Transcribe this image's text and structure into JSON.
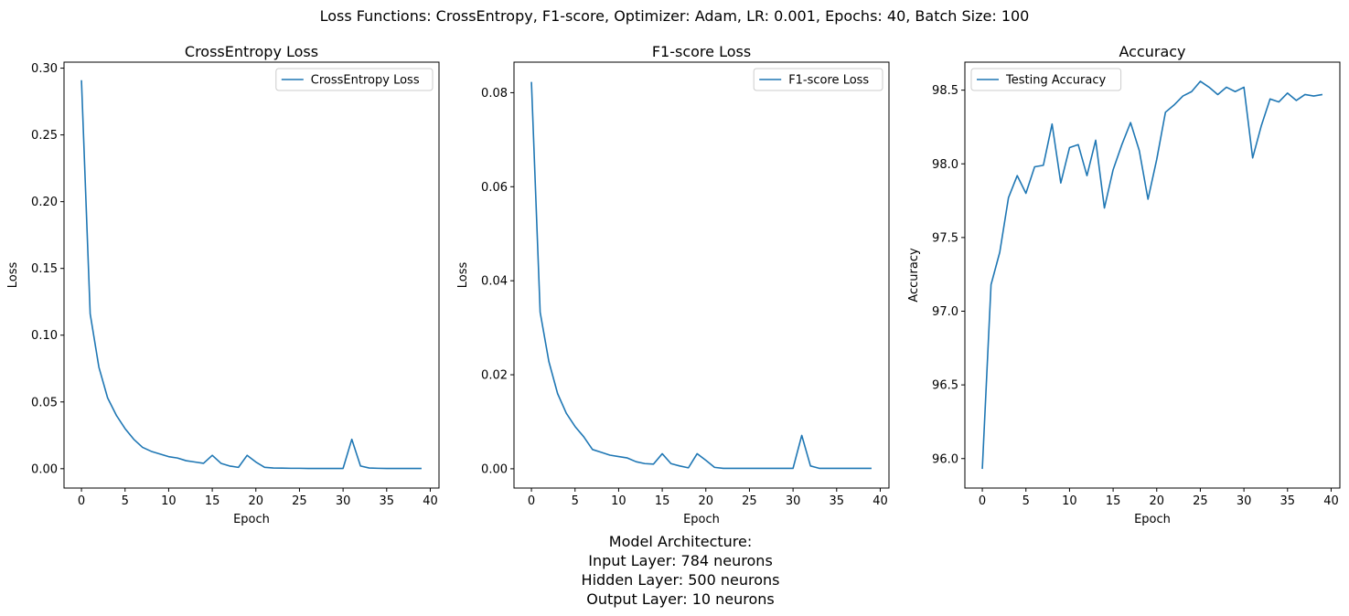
{
  "suptitle": "Loss Functions: CrossEntropy, F1-score, Optimizer: Adam, LR: 0.001, Epochs: 40, Batch Size: 100",
  "colors": {
    "line": "#1f77b4",
    "axis": "#000000",
    "legend_border": "#cccccc"
  },
  "architecture": {
    "title": "Model Architecture:",
    "input": "Input Layer: 784 neurons",
    "hidden": "Hidden Layer: 500 neurons",
    "output": "Output Layer: 10 neurons"
  },
  "chart_data": [
    {
      "type": "line",
      "title": "CrossEntropy Loss",
      "xlabel": "Epoch",
      "ylabel": "Loss",
      "xlim": [
        -2,
        41
      ],
      "ylim": [
        -0.0145,
        0.3045
      ],
      "xticks": [
        0,
        5,
        10,
        15,
        20,
        25,
        30,
        35,
        40
      ],
      "yticks": [
        0.0,
        0.05,
        0.1,
        0.15,
        0.2,
        0.25,
        0.3
      ],
      "ytick_labels": [
        "0.00",
        "0.05",
        "0.10",
        "0.15",
        "0.20",
        "0.25",
        "0.30"
      ],
      "grid": false,
      "legend_position": "upper right",
      "series": [
        {
          "name": "CrossEntropy Loss",
          "x": [
            0,
            1,
            2,
            3,
            4,
            5,
            6,
            7,
            8,
            9,
            10,
            11,
            12,
            13,
            14,
            15,
            16,
            17,
            18,
            19,
            20,
            21,
            22,
            23,
            24,
            25,
            26,
            27,
            28,
            29,
            30,
            31,
            32,
            33,
            34,
            35,
            36,
            37,
            38,
            39
          ],
          "y": [
            0.291,
            0.116,
            0.076,
            0.053,
            0.04,
            0.03,
            0.022,
            0.016,
            0.013,
            0.011,
            0.009,
            0.008,
            0.006,
            0.005,
            0.004,
            0.01,
            0.004,
            0.002,
            0.001,
            0.01,
            0.005,
            0.001,
            0.0005,
            0.0004,
            0.0003,
            0.0003,
            0.0002,
            0.0002,
            0.0002,
            0.0002,
            0.0002,
            0.022,
            0.002,
            0.0005,
            0.0003,
            0.0002,
            0.0002,
            0.0002,
            0.0002,
            0.0002
          ]
        }
      ]
    },
    {
      "type": "line",
      "title": "F1-score Loss",
      "xlabel": "Epoch",
      "ylabel": "Loss",
      "xlim": [
        -2,
        41
      ],
      "ylim": [
        -0.0041,
        0.0865
      ],
      "xticks": [
        0,
        5,
        10,
        15,
        20,
        25,
        30,
        35,
        40
      ],
      "yticks": [
        0.0,
        0.02,
        0.04,
        0.06,
        0.08
      ],
      "ytick_labels": [
        "0.00",
        "0.02",
        "0.04",
        "0.06",
        "0.08"
      ],
      "grid": false,
      "legend_position": "upper right",
      "series": [
        {
          "name": "F1-score Loss",
          "x": [
            0,
            1,
            2,
            3,
            4,
            5,
            6,
            7,
            8,
            9,
            10,
            11,
            12,
            13,
            14,
            15,
            16,
            17,
            18,
            19,
            20,
            21,
            22,
            23,
            24,
            25,
            26,
            27,
            28,
            29,
            30,
            31,
            32,
            33,
            34,
            35,
            36,
            37,
            38,
            39
          ],
          "y": [
            0.0823,
            0.0333,
            0.0228,
            0.016,
            0.0118,
            0.009,
            0.0068,
            0.0041,
            0.0035,
            0.0029,
            0.0026,
            0.0023,
            0.0015,
            0.0011,
            0.001,
            0.0032,
            0.0011,
            0.0006,
            0.0002,
            0.0032,
            0.0018,
            0.0003,
            0.0001,
            0.0001,
            0.0001,
            0.0001,
            0.0001,
            0.0001,
            0.0001,
            0.0001,
            0.0001,
            0.0071,
            0.0006,
            0.0001,
            0.0001,
            0.0001,
            0.0001,
            0.0001,
            0.0001,
            0.0001
          ]
        }
      ]
    },
    {
      "type": "line",
      "title": "Accuracy",
      "xlabel": "Epoch",
      "ylabel": "Accuracy",
      "xlim": [
        -2,
        41
      ],
      "ylim": [
        95.8,
        98.69
      ],
      "xticks": [
        0,
        5,
        10,
        15,
        20,
        25,
        30,
        35,
        40
      ],
      "yticks": [
        96.0,
        96.5,
        97.0,
        97.5,
        98.0,
        98.5
      ],
      "ytick_labels": [
        "96.0",
        "96.5",
        "97.0",
        "97.5",
        "98.0",
        "98.5"
      ],
      "grid": false,
      "legend_position": "upper left",
      "series": [
        {
          "name": "Testing Accuracy",
          "x": [
            0,
            1,
            2,
            3,
            4,
            5,
            6,
            7,
            8,
            9,
            10,
            11,
            12,
            13,
            14,
            15,
            16,
            17,
            18,
            19,
            20,
            21,
            22,
            23,
            24,
            25,
            26,
            27,
            28,
            29,
            30,
            31,
            32,
            33,
            34,
            35,
            36,
            37,
            38,
            39
          ],
          "y": [
            95.93,
            97.18,
            97.4,
            97.77,
            97.92,
            97.8,
            97.98,
            97.99,
            98.27,
            97.87,
            98.11,
            98.13,
            97.92,
            98.16,
            97.7,
            97.96,
            98.13,
            98.28,
            98.09,
            97.76,
            98.03,
            98.35,
            98.4,
            98.46,
            98.49,
            98.56,
            98.52,
            98.47,
            98.52,
            98.49,
            98.52,
            98.04,
            98.26,
            98.44,
            98.42,
            98.48,
            98.43,
            98.47,
            98.46,
            98.47
          ]
        }
      ]
    }
  ]
}
